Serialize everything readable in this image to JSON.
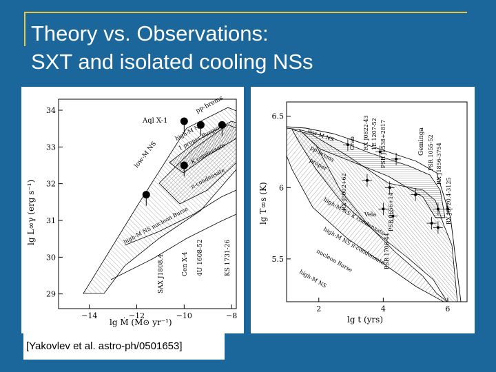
{
  "slide": {
    "title_line1": "Theory vs. Observations:",
    "title_line2": "SXT and isolated cooling NSs",
    "citation": "[Yakovlev et al. astro-ph/0501653]",
    "background_color": "#1b679b",
    "accent_color": "#e8c840"
  },
  "chart_data": [
    {
      "type": "scatter",
      "title": "",
      "xlabel": "lg Ṁ  (M⊙ yr⁻¹)",
      "ylabel": "lg L∞γ (erg s⁻¹)",
      "xlim": [
        -15.3,
        -7.8
      ],
      "ylim": [
        28.6,
        34.3
      ],
      "xticks": [
        -14,
        -12,
        -10,
        -8
      ],
      "yticks": [
        29,
        30,
        31,
        32,
        33,
        34
      ],
      "curve_labels": [
        "pp-brems",
        "low-M NS",
        "high-M NS",
        "1 proper Burgin",
        "K condensate",
        "π-condensate",
        "high-M NS nucleon Burse",
        "high-M NS nucleon Burse 2"
      ],
      "source_labels": [
        "Aql X-1",
        "SAX J1808.4",
        "Cen X-4",
        "4U 1608-52",
        "KS 1731-26"
      ],
      "points": [
        {
          "x": -10.0,
          "y": 33.7
        },
        {
          "x": -9.3,
          "y": 33.6
        },
        {
          "x": -8.4,
          "y": 33.6
        },
        {
          "x": -10.0,
          "y": 32.5
        },
        {
          "x": -11.6,
          "y": 31.7
        }
      ]
    },
    {
      "type": "scatter",
      "title": "",
      "xlabel": "lg t  (yrs)",
      "ylabel": "lg T∞s (K)",
      "xlim": [
        1.0,
        6.6
      ],
      "ylim": [
        5.2,
        6.6
      ],
      "xticks": [
        2,
        4,
        6
      ],
      "yticks": [
        5.5,
        6,
        6.5
      ],
      "curve_labels": [
        "low-M NS",
        "pp-brems",
        "proper",
        "high-M NS K condensate",
        "high-M NS π-condensate",
        "nucleon Burse",
        "high-M NS"
      ],
      "source_labels": [
        "Crab",
        "RX J0822-43",
        "1E 1207-52",
        "RX J0002+62",
        "PSR J0538+2817",
        "Vela",
        "PSR 1706-44",
        "PSR 0656+14",
        "Geminga",
        "PSR 1055-52",
        "RX J1856-3754",
        "RX J0720.4-3125"
      ],
      "points": [
        {
          "x": 2.9,
          "y": 6.3
        },
        {
          "x": 3.9,
          "y": 6.25
        },
        {
          "x": 4.4,
          "y": 6.2
        },
        {
          "x": 3.5,
          "y": 6.05
        },
        {
          "x": 4.2,
          "y": 6.0
        },
        {
          "x": 4.0,
          "y": 5.85
        },
        {
          "x": 4.3,
          "y": 5.8
        },
        {
          "x": 5.0,
          "y": 5.95
        },
        {
          "x": 5.5,
          "y": 5.75
        },
        {
          "x": 5.7,
          "y": 5.85
        },
        {
          "x": 5.7,
          "y": 5.72
        },
        {
          "x": 6.0,
          "y": 5.85
        }
      ]
    }
  ]
}
